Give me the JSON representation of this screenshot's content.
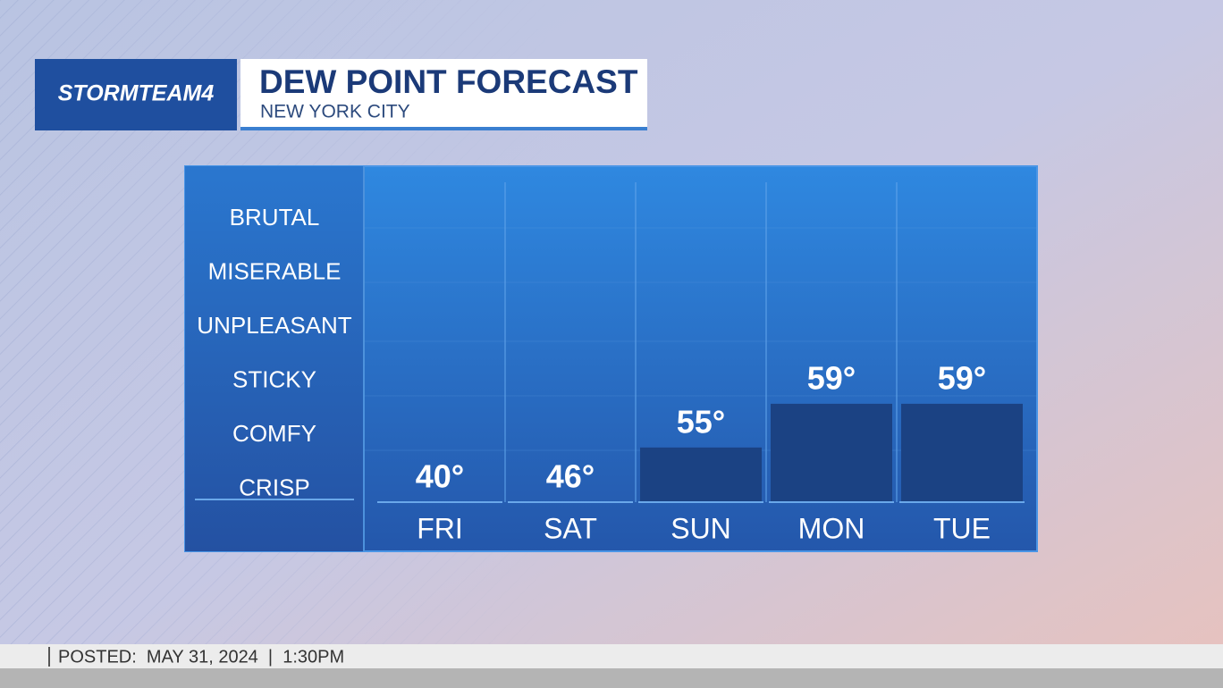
{
  "brand": "STORMTEAM4",
  "footer": "POSTED:  MAY 31, 2024  |  1:30PM",
  "chart_data": {
    "type": "bar",
    "title": "DEW POINT FORECAST",
    "subtitle": "NEW YORK CITY",
    "categories": [
      "FRI",
      "SAT",
      "SUN",
      "MON",
      "TUE"
    ],
    "values": [
      40,
      46,
      55,
      59,
      59
    ],
    "value_labels": [
      "40°",
      "46°",
      "55°",
      "59°",
      "59°"
    ],
    "levels": [
      "BRUTAL",
      "MISERABLE",
      "UNPLEASANT",
      "STICKY",
      "COMFY",
      "CRISP"
    ],
    "ylim": [
      50,
      80
    ],
    "color": "#1b4283"
  }
}
